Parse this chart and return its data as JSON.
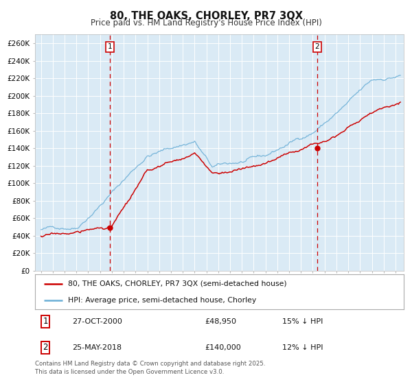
{
  "title": "80, THE OAKS, CHORLEY, PR7 3QX",
  "subtitle": "Price paid vs. HM Land Registry's House Price Index (HPI)",
  "fig_bg_color": "#ffffff",
  "plot_bg_color": "#daeaf5",
  "ylim": [
    0,
    270000
  ],
  "yticks": [
    0,
    20000,
    40000,
    60000,
    80000,
    100000,
    120000,
    140000,
    160000,
    180000,
    200000,
    220000,
    240000,
    260000
  ],
  "ytick_labels": [
    "£0",
    "£20K",
    "£40K",
    "£60K",
    "£80K",
    "£100K",
    "£120K",
    "£140K",
    "£160K",
    "£180K",
    "£200K",
    "£220K",
    "£240K",
    "£260K"
  ],
  "hpi_color": "#6aaed6",
  "price_color": "#cc0000",
  "vline_color": "#cc0000",
  "sale1_date_num": 2000.82,
  "sale1_price": 48950,
  "sale1_label": "1",
  "sale2_date_num": 2018.38,
  "sale2_price": 140000,
  "sale2_label": "2",
  "legend1_label": "80, THE OAKS, CHORLEY, PR7 3QX (semi-detached house)",
  "legend2_label": "HPI: Average price, semi-detached house, Chorley",
  "table_row1": [
    "1",
    "27-OCT-2000",
    "£48,950",
    "15% ↓ HPI"
  ],
  "table_row2": [
    "2",
    "25-MAY-2018",
    "£140,000",
    "12% ↓ HPI"
  ],
  "footer": "Contains HM Land Registry data © Crown copyright and database right 2025.\nThis data is licensed under the Open Government Licence v3.0.",
  "xlim_start": 1994.5,
  "xlim_end": 2025.7
}
